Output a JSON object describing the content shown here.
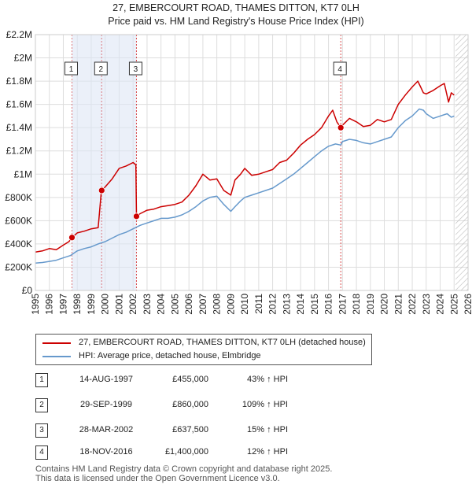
{
  "title": "27, EMBERCOURT ROAD, THAMES DITTON, KT7 0LH",
  "subtitle": "Price paid vs. HM Land Registry's House Price Index (HPI)",
  "colors": {
    "property": "#cc0000",
    "hpi": "#6699cc",
    "grid": "#dddddd",
    "hatch": "#bbbbbb"
  },
  "chart_data": {
    "type": "line",
    "x_range": [
      1995,
      2026
    ],
    "ylim": [
      0,
      2200000
    ],
    "y_ticks": [
      {
        "value": 0,
        "label": "£0"
      },
      {
        "value": 200000,
        "label": "£200K"
      },
      {
        "value": 400000,
        "label": "£400K"
      },
      {
        "value": 600000,
        "label": "£600K"
      },
      {
        "value": 800000,
        "label": "£800K"
      },
      {
        "value": 1000000,
        "label": "£1M"
      },
      {
        "value": 1200000,
        "label": "£1.2M"
      },
      {
        "value": 1400000,
        "label": "£1.4M"
      },
      {
        "value": 1600000,
        "label": "£1.6M"
      },
      {
        "value": 1800000,
        "label": "£1.8M"
      },
      {
        "value": 2000000,
        "label": "£2M"
      },
      {
        "value": 2200000,
        "label": "£2.2M"
      }
    ],
    "x_ticks": [
      "1995",
      "1996",
      "1997",
      "1998",
      "1999",
      "2000",
      "2001",
      "2002",
      "2003",
      "2004",
      "2005",
      "2006",
      "2007",
      "2008",
      "2009",
      "2010",
      "2011",
      "2012",
      "2013",
      "2014",
      "2015",
      "2016",
      "2017",
      "2018",
      "2019",
      "2020",
      "2021",
      "2022",
      "2023",
      "2024",
      "2025",
      "2026"
    ],
    "future_hatch_from": 2025.1,
    "series": [
      {
        "name": "27, EMBERCOURT ROAD, THAMES DITTON, KT7 0LH (detached house)",
        "x": [
          1995.0,
          1995.5,
          1996.0,
          1996.5,
          1997.0,
          1997.4,
          1997.62,
          1998.0,
          1998.5,
          1999.0,
          1999.5,
          1999.73,
          2000.0,
          2000.5,
          2001.0,
          2001.5,
          2002.0,
          2002.2,
          2002.24,
          2002.5,
          2003.0,
          2003.5,
          2004.0,
          2004.5,
          2005.0,
          2005.5,
          2006.0,
          2006.5,
          2007.0,
          2007.5,
          2008.0,
          2008.5,
          2009.0,
          2009.3,
          2009.7,
          2010.0,
          2010.5,
          2011.0,
          2011.5,
          2012.0,
          2012.5,
          2013.0,
          2013.5,
          2014.0,
          2014.5,
          2015.0,
          2015.5,
          2016.0,
          2016.3,
          2016.6,
          2016.88,
          2017.0,
          2017.5,
          2018.0,
          2018.5,
          2019.0,
          2019.5,
          2020.0,
          2020.5,
          2021.0,
          2021.5,
          2022.0,
          2022.4,
          2022.6,
          2022.8,
          2023.0,
          2023.5,
          2024.0,
          2024.3,
          2024.6,
          2024.8,
          2025.0
        ],
        "values": [
          330000,
          340000,
          360000,
          350000,
          390000,
          420000,
          455000,
          495000,
          510000,
          530000,
          540000,
          860000,
          890000,
          960000,
          1050000,
          1070000,
          1100000,
          1080000,
          637500,
          660000,
          690000,
          700000,
          720000,
          730000,
          740000,
          760000,
          820000,
          900000,
          1000000,
          950000,
          960000,
          860000,
          820000,
          950000,
          1000000,
          1050000,
          990000,
          1000000,
          1020000,
          1040000,
          1100000,
          1120000,
          1180000,
          1250000,
          1300000,
          1340000,
          1400000,
          1500000,
          1550000,
          1450000,
          1400000,
          1420000,
          1480000,
          1450000,
          1410000,
          1420000,
          1470000,
          1450000,
          1470000,
          1600000,
          1680000,
          1750000,
          1800000,
          1750000,
          1700000,
          1690000,
          1720000,
          1760000,
          1780000,
          1620000,
          1700000,
          1680000
        ]
      },
      {
        "name": "HPI: Average price, detached house, Elmbridge",
        "x": [
          1995.0,
          1995.5,
          1996.0,
          1996.5,
          1997.0,
          1997.5,
          1998.0,
          1998.5,
          1999.0,
          1999.5,
          2000.0,
          2000.5,
          2001.0,
          2001.5,
          2002.0,
          2002.5,
          2003.0,
          2003.5,
          2004.0,
          2004.5,
          2005.0,
          2005.5,
          2006.0,
          2006.5,
          2007.0,
          2007.5,
          2008.0,
          2008.5,
          2009.0,
          2009.3,
          2009.7,
          2010.0,
          2010.5,
          2011.0,
          2011.5,
          2012.0,
          2012.5,
          2013.0,
          2013.5,
          2014.0,
          2014.5,
          2015.0,
          2015.5,
          2016.0,
          2016.5,
          2016.88,
          2017.0,
          2017.5,
          2018.0,
          2018.5,
          2019.0,
          2019.5,
          2020.0,
          2020.5,
          2021.0,
          2021.5,
          2022.0,
          2022.5,
          2022.8,
          2023.0,
          2023.5,
          2024.0,
          2024.5,
          2024.8,
          2025.0
        ],
        "values": [
          235000,
          240000,
          250000,
          260000,
          280000,
          300000,
          340000,
          360000,
          375000,
          400000,
          420000,
          450000,
          480000,
          500000,
          530000,
          560000,
          580000,
          600000,
          620000,
          620000,
          630000,
          650000,
          680000,
          720000,
          770000,
          800000,
          810000,
          740000,
          680000,
          720000,
          770000,
          800000,
          820000,
          840000,
          860000,
          880000,
          920000,
          960000,
          1000000,
          1050000,
          1100000,
          1150000,
          1200000,
          1240000,
          1260000,
          1250000,
          1280000,
          1300000,
          1290000,
          1270000,
          1260000,
          1280000,
          1300000,
          1320000,
          1400000,
          1460000,
          1500000,
          1560000,
          1550000,
          1520000,
          1480000,
          1500000,
          1520000,
          1490000,
          1500000
        ]
      }
    ],
    "sales": [
      {
        "label": "1",
        "x": 1997.62,
        "value": 455000
      },
      {
        "label": "2",
        "x": 1999.75,
        "value": 860000
      },
      {
        "label": "3",
        "x": 2002.24,
        "value": 637500
      },
      {
        "label": "4",
        "x": 2016.88,
        "value": 1400000
      }
    ]
  },
  "legend": {
    "property_label": "27, EMBERCOURT ROAD, THAMES DITTON, KT7 0LH (detached house)",
    "hpi_label": "HPI: Average price, detached house, Elmbridge"
  },
  "table": [
    {
      "num": "1",
      "date": "14-AUG-1997",
      "price": "£455,000",
      "hpi": "43% ↑ HPI"
    },
    {
      "num": "2",
      "date": "29-SEP-1999",
      "price": "£860,000",
      "hpi": "109% ↑ HPI"
    },
    {
      "num": "3",
      "date": "28-MAR-2002",
      "price": "£637,500",
      "hpi": "15% ↑ HPI"
    },
    {
      "num": "4",
      "date": "18-NOV-2016",
      "price": "£1,400,000",
      "hpi": "12% ↑ HPI"
    }
  ],
  "footer": {
    "line1": "Contains HM Land Registry data © Crown copyright and database right 2025.",
    "line2": "This data is licensed under the Open Government Licence v3.0."
  }
}
